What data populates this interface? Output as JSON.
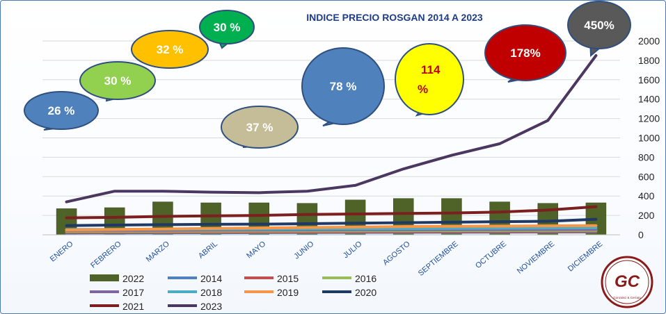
{
  "chart_data": {
    "type": "line",
    "title": "INDICE PRECIO ROSGAN 2014 A 2023",
    "categories": [
      "ENERO",
      "FEBRERO",
      "MARZO",
      "ABRIL",
      "MAYO",
      "JUNIO",
      "JULIO",
      "AGOSTO",
      "SEPTIEMBRE",
      "OCTUBRE",
      "NOVIEMBRE",
      "DICIEMBRE"
    ],
    "ylim": [
      0,
      2000
    ],
    "yticks": [
      "0",
      "200",
      "400",
      "600",
      "800",
      "1000",
      "1200",
      "1400",
      "1600",
      "1800",
      "2000"
    ],
    "grid": true,
    "legend_position": "bottom-left",
    "bar_series": {
      "name": "2022",
      "color": "#4f6228",
      "values": [
        270,
        280,
        340,
        330,
        330,
        325,
        360,
        375,
        375,
        340,
        325,
        330
      ]
    },
    "series": [
      {
        "name": "2014",
        "color": "#4f81bd",
        "values": [
          18,
          19,
          20,
          21,
          22,
          23,
          24,
          25,
          26,
          27,
          28,
          29
        ]
      },
      {
        "name": "2015",
        "color": "#c0504d",
        "values": [
          25,
          26,
          27,
          28,
          29,
          30,
          31,
          32,
          33,
          34,
          35,
          36
        ]
      },
      {
        "name": "2016",
        "color": "#9bbb59",
        "values": [
          35,
          36,
          37,
          38,
          39,
          40,
          41,
          42,
          43,
          44,
          45,
          46
        ]
      },
      {
        "name": "2017",
        "color": "#8064a2",
        "values": [
          45,
          46,
          47,
          48,
          49,
          50,
          51,
          52,
          53,
          54,
          55,
          56
        ]
      },
      {
        "name": "2018",
        "color": "#4bacc6",
        "values": [
          55,
          56,
          57,
          58,
          59,
          60,
          62,
          64,
          66,
          68,
          70,
          72
        ]
      },
      {
        "name": "2019",
        "color": "#f79646",
        "values": [
          50,
          55,
          60,
          65,
          70,
          75,
          80,
          85,
          88,
          90,
          92,
          95
        ]
      },
      {
        "name": "2020",
        "color": "#1f3864",
        "values": [
          95,
          100,
          105,
          108,
          110,
          115,
          120,
          125,
          130,
          135,
          140,
          160
        ]
      },
      {
        "name": "2021",
        "color": "#7b1f1f",
        "values": [
          175,
          180,
          190,
          195,
          200,
          210,
          215,
          220,
          225,
          235,
          255,
          290
        ]
      },
      {
        "name": "2023",
        "color": "#4b3760",
        "values": [
          340,
          450,
          450,
          440,
          435,
          450,
          510,
          680,
          820,
          940,
          1180,
          1850
        ]
      }
    ]
  },
  "callouts": [
    {
      "text": "26 %",
      "fill": "#4f81bd",
      "text_color": "#ffffff"
    },
    {
      "text": "30 %",
      "fill": "#92d050",
      "text_color": "#ffffff"
    },
    {
      "text": "32 %",
      "fill": "#ffc000",
      "text_color": "#ffffff"
    },
    {
      "text": "30 %",
      "fill": "#00b050",
      "text_color": "#ffffff"
    },
    {
      "text": "37 %",
      "fill": "#c4bd97",
      "text_color": "#ffffff"
    },
    {
      "text": "78 %",
      "fill": "#4f81bd",
      "text_color": "#ffffff"
    },
    {
      "text": "114 %",
      "fill": "#ffff00",
      "text_color": "#c00000"
    },
    {
      "text": "178%",
      "fill": "#c00000",
      "text_color": "#ffffff"
    },
    {
      "text": "450%",
      "fill": "#595959",
      "text_color": "#ffffff"
    }
  ],
  "logo": {
    "text": "GC",
    "subtitle": "Gonzalez & Cerrato"
  }
}
